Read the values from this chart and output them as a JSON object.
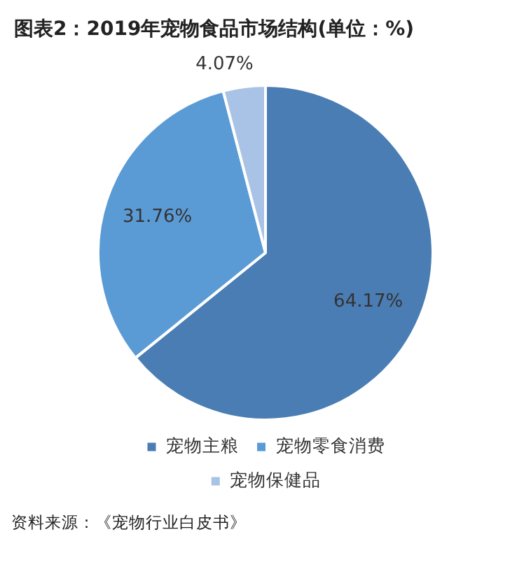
{
  "chart_data": {
    "type": "pie",
    "title": "图表2：2019年宠物食品市场结构(单位：%)",
    "categories": [
      "宠物主粮",
      "宠物零食消费",
      "宠物保健品"
    ],
    "values": [
      64.17,
      31.76,
      4.07
    ],
    "colors": [
      "#4a7db4",
      "#5b9bd5",
      "#a9c3e6"
    ],
    "value_labels": [
      "64.17%",
      "31.76%",
      "4.07%"
    ],
    "legend": "bottom",
    "annotations": [
      "资料来源：《宠物行业白皮书》"
    ]
  }
}
